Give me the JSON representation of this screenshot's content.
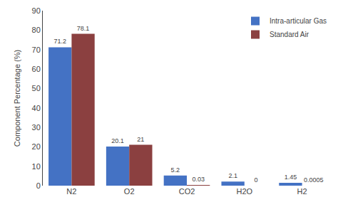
{
  "chart_data": {
    "type": "bar",
    "categories": [
      "N2",
      "O2",
      "CO2",
      "H2O",
      "H2"
    ],
    "series": [
      {
        "name": "Intra-articular Gas",
        "color": "#4472C4",
        "values": [
          71.2,
          20.1,
          5.2,
          2.1,
          1.45
        ]
      },
      {
        "name": "Standard Air",
        "color": "#8B4040",
        "values": [
          78.1,
          21,
          0.03,
          0,
          0.0005
        ]
      }
    ],
    "ylabel": "Component Percentage (%)",
    "ylim": [
      0,
      90
    ],
    "yticks": [
      0,
      10,
      20,
      30,
      40,
      50,
      60,
      70,
      80,
      90
    ],
    "grid": false,
    "legend": "upper right",
    "data_labels": true
  }
}
